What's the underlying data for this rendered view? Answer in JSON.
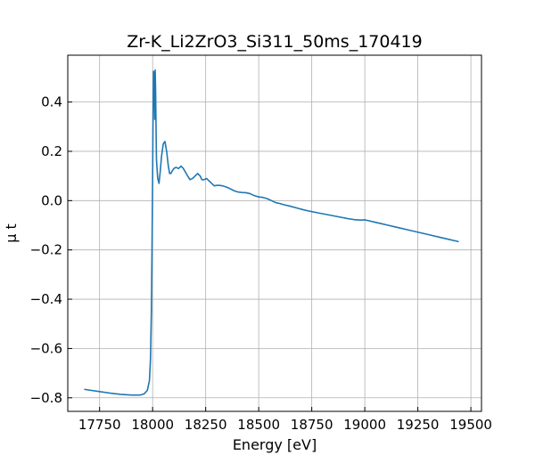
{
  "chart_data": {
    "type": "line",
    "title": "Zr-K_Li2ZrO3_Si311_50ms_170419",
    "xlabel": "Energy [eV]",
    "ylabel": "μ t",
    "xlim": [
      17600,
      19550
    ],
    "ylim": [
      -0.855,
      0.59
    ],
    "xticks": [
      17750,
      18000,
      18250,
      18500,
      18750,
      19000,
      19250,
      19500
    ],
    "yticks": [
      -0.8,
      -0.6,
      -0.4,
      -0.2,
      0.0,
      0.2,
      0.4
    ],
    "xtick_labels": [
      "17750",
      "18000",
      "18250",
      "18500",
      "18750",
      "19000",
      "19250",
      "19500"
    ],
    "ytick_labels": [
      "−0.8",
      "−0.6",
      "−0.4",
      "−0.2",
      "0.0",
      "0.2",
      "0.4"
    ],
    "grid": true,
    "line_color": "#1f77b4",
    "series": [
      {
        "x": [
          17680,
          17750,
          17800,
          17850,
          17900,
          17940,
          17960,
          17975,
          17985,
          17990,
          17994,
          17997,
          18000,
          18002,
          18004,
          18006,
          18008,
          18010,
          18012,
          18014,
          18016,
          18018,
          18020,
          18024,
          18030,
          18036,
          18042,
          18050,
          18058,
          18066,
          18074,
          18080,
          18086,
          18092,
          18100,
          18110,
          18122,
          18134,
          18145,
          18155,
          18165,
          18176,
          18188,
          18200,
          18212,
          18224,
          18232,
          18242,
          18254,
          18266,
          18278,
          18290,
          18302,
          18314,
          18330,
          18348,
          18366,
          18384,
          18402,
          18420,
          18440,
          18460,
          18480,
          18500,
          18520,
          18540,
          18560,
          18580,
          18600,
          18620,
          18650,
          18680,
          18710,
          18740,
          18770,
          18800,
          18830,
          18860,
          18890,
          18920,
          18950,
          18980,
          19000,
          19020,
          19050,
          19080,
          19110,
          19140,
          19170,
          19200,
          19250,
          19300,
          19350,
          19400,
          19440
        ],
        "y": [
          -0.766,
          -0.775,
          -0.781,
          -0.786,
          -0.789,
          -0.789,
          -0.784,
          -0.77,
          -0.73,
          -0.64,
          -0.45,
          -0.2,
          0.1,
          0.35,
          0.525,
          0.52,
          0.45,
          0.33,
          0.53,
          0.45,
          0.3,
          0.17,
          0.14,
          0.09,
          0.07,
          0.12,
          0.18,
          0.23,
          0.24,
          0.2,
          0.14,
          0.11,
          0.11,
          0.12,
          0.13,
          0.135,
          0.13,
          0.14,
          0.13,
          0.115,
          0.1,
          0.085,
          0.09,
          0.1,
          0.11,
          0.1,
          0.085,
          0.085,
          0.09,
          0.08,
          0.07,
          0.06,
          0.062,
          0.062,
          0.06,
          0.055,
          0.048,
          0.04,
          0.035,
          0.033,
          0.032,
          0.028,
          0.02,
          0.015,
          0.013,
          0.008,
          0.0,
          -0.008,
          -0.012,
          -0.017,
          -0.023,
          -0.03,
          -0.037,
          -0.043,
          -0.048,
          -0.053,
          -0.058,
          -0.063,
          -0.068,
          -0.073,
          -0.077,
          -0.079,
          -0.078,
          -0.082,
          -0.088,
          -0.094,
          -0.1,
          -0.106,
          -0.112,
          -0.118,
          -0.128,
          -0.138,
          -0.148,
          -0.158,
          -0.166
        ]
      }
    ]
  }
}
